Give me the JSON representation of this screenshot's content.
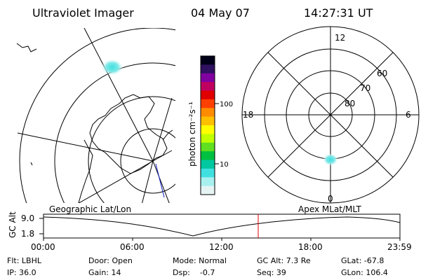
{
  "header": {
    "title": "Ultraviolet Imager",
    "date": "04 May 07",
    "time": "14:27:31 UT"
  },
  "colorbar": {
    "unit_label": "photon cm⁻²s⁻¹",
    "ticks": [
      "100",
      "10"
    ],
    "colors": [
      "#000018",
      "#301060",
      "#8000a0",
      "#c00060",
      "#e00000",
      "#ff4000",
      "#ff8c00",
      "#ffc000",
      "#ffff00",
      "#c0ff00",
      "#60e020",
      "#00c040",
      "#00c8a0",
      "#40e0e0",
      "#a8f0f0",
      "#e6f4f4"
    ]
  },
  "polar_plot": {
    "mlt_labels": {
      "top": "12",
      "left": "18",
      "right": "6",
      "bottom": "0"
    },
    "mlat_labels": [
      "60",
      "70",
      "80"
    ]
  },
  "timeline": {
    "left_label": "Geographic Lat/Lon",
    "right_label": "Apex MLat/MLT",
    "axis_title": "GC Alt",
    "y_max": "9.0",
    "y_min": "1.8",
    "x_ticks": [
      "00:00",
      "06:00",
      "12:00",
      "18:00",
      "23:59"
    ],
    "current_time_fraction": 0.6024,
    "marker_color": "#e00000"
  },
  "status": {
    "flt": "Flt: LBHL",
    "ip": "IP: 36.0",
    "door": "Door: Open",
    "gain": "Gain: 14",
    "mode": "Mode: Normal",
    "dsp": "Dsp:    -0.7",
    "gc_alt": "GC Alt: 7.3 Re",
    "seq": "Seq: 39",
    "glat": "GLat: -67.8",
    "glon": "GLon: 106.4"
  }
}
